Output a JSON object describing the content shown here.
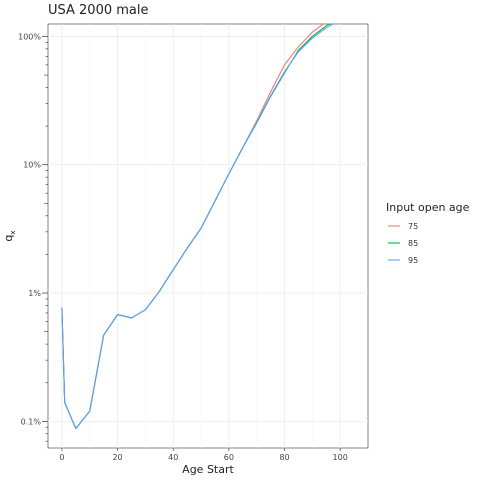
{
  "chart_data": {
    "type": "line",
    "title": "USA 2000 male",
    "xlabel": "Age Start",
    "ylabel": "q",
    "ylabel_subscript": "x",
    "xlim": [
      -5,
      110
    ],
    "ylim": [
      0.00062,
      1.25
    ],
    "yscale": "log",
    "x_ticks": [
      0,
      20,
      40,
      60,
      80,
      100
    ],
    "x_tick_labels": [
      "0",
      "20",
      "40",
      "60",
      "80",
      "100"
    ],
    "y_ticks": [
      0.001,
      0.01,
      0.1,
      1
    ],
    "y_tick_labels": [
      "0.1%",
      "1%",
      "10%",
      "100%"
    ],
    "grid": true,
    "legend": {
      "title": "Input open age",
      "position": "right",
      "entries": [
        "75",
        "85",
        "95"
      ]
    },
    "series": [
      {
        "name": "75",
        "color": "#F8766D",
        "x": [
          0,
          1,
          5,
          10,
          15,
          20,
          25,
          30,
          35,
          40,
          45,
          50,
          55,
          60,
          65,
          70,
          75,
          80,
          85,
          90,
          95,
          100,
          105
        ],
        "y": [
          0.0077,
          0.0014,
          0.00088,
          0.0012,
          0.0047,
          0.0068,
          0.0064,
          0.0074,
          0.0103,
          0.0152,
          0.0223,
          0.032,
          0.052,
          0.085,
          0.136,
          0.22,
          0.37,
          0.6,
          0.83,
          1.08,
          1.3,
          1.43,
          1.5
        ]
      },
      {
        "name": "85",
        "color": "#00BA38",
        "x": [
          0,
          1,
          5,
          10,
          15,
          20,
          25,
          30,
          35,
          40,
          45,
          50,
          55,
          60,
          65,
          70,
          75,
          80,
          85,
          90,
          95,
          100,
          105
        ],
        "y": [
          0.0077,
          0.0014,
          0.00088,
          0.0012,
          0.0047,
          0.0068,
          0.0064,
          0.0074,
          0.0103,
          0.0152,
          0.0223,
          0.032,
          0.052,
          0.085,
          0.136,
          0.212,
          0.34,
          0.52,
          0.78,
          1.0,
          1.21,
          1.38,
          1.48
        ]
      },
      {
        "name": "95",
        "color": "#619CFF",
        "x": [
          0,
          1,
          5,
          10,
          15,
          20,
          25,
          30,
          35,
          40,
          45,
          50,
          55,
          60,
          65,
          70,
          75,
          80,
          85,
          90,
          95,
          100,
          105
        ],
        "y": [
          0.0077,
          0.0014,
          0.00088,
          0.0012,
          0.0047,
          0.0068,
          0.0064,
          0.0074,
          0.0103,
          0.0152,
          0.0223,
          0.032,
          0.052,
          0.085,
          0.136,
          0.215,
          0.345,
          0.53,
          0.76,
          0.97,
          1.17,
          1.34,
          1.45
        ]
      }
    ]
  }
}
